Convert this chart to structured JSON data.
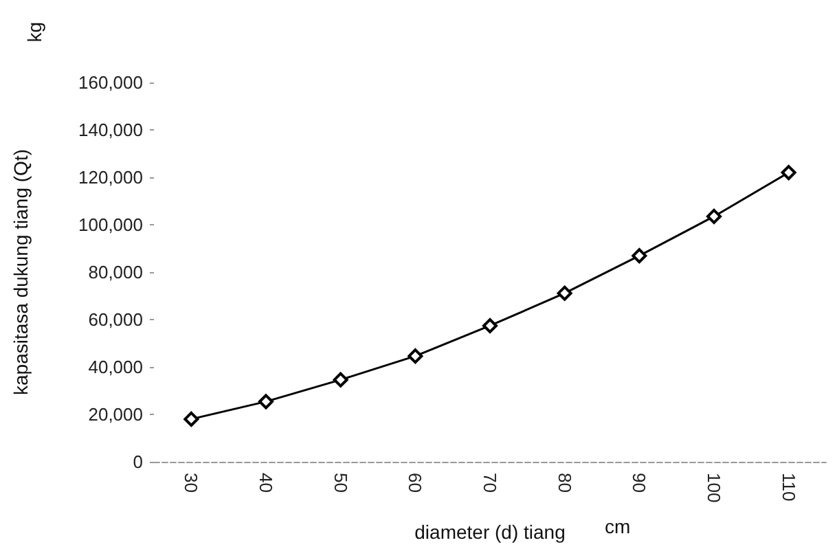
{
  "chart_data": {
    "type": "line",
    "xlabel": "diameter (d) tiang",
    "ylabel": "kapasitasa dukung tiang (Qt)",
    "annotations": [
      "kg",
      "cm"
    ],
    "categories": [
      "30",
      "40",
      "50",
      "60",
      "70",
      "80",
      "90",
      "100",
      "110"
    ],
    "series": [
      {
        "color": "#000000",
        "values": [
          18000,
          25400,
          34600,
          44600,
          57400,
          71100,
          86900,
          103500,
          122000
        ]
      }
    ],
    "ylim": [
      0,
      160000
    ],
    "yticks": [
      {
        "value": 0,
        "label": "0"
      },
      {
        "value": 20000,
        "label": "20,000"
      },
      {
        "value": 40000,
        "label": "40,000"
      },
      {
        "value": 60000,
        "label": "60,000"
      },
      {
        "value": 80000,
        "label": "80,000"
      },
      {
        "value": 100000,
        "label": "100,000"
      },
      {
        "value": 120000,
        "label": "120,000"
      },
      {
        "value": 140000,
        "label": "140,000"
      },
      {
        "value": 160000,
        "label": "160,000"
      }
    ],
    "grid": false,
    "marker": "diamond",
    "line_style": "solid"
  }
}
